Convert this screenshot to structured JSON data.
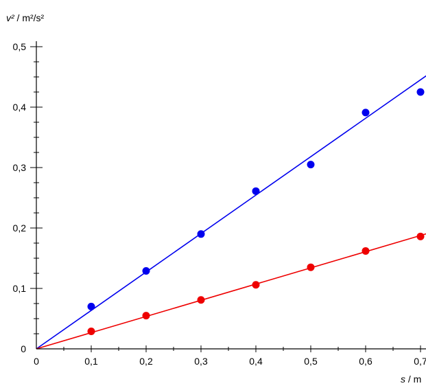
{
  "chart_data": {
    "type": "scatter",
    "title": "",
    "xlabel": {
      "var": "s",
      "unit": " / m"
    },
    "ylabel": {
      "var": "v²",
      "unit": " / m²/s²"
    },
    "xlim": [
      0,
      0.7
    ],
    "ylim": [
      0,
      0.5
    ],
    "x_major_ticks": [
      0,
      0.1,
      0.2,
      0.3,
      0.4,
      0.5,
      0.6,
      0.7
    ],
    "x_tick_labels": [
      "0",
      "0,1",
      "0,2",
      "0,3",
      "0,4",
      "0,5",
      "0,6",
      "0,7"
    ],
    "y_major_ticks": [
      0,
      0.1,
      0.2,
      0.3,
      0.4,
      0.5
    ],
    "y_tick_labels": [
      "0",
      "0,1",
      "0,2",
      "0,3",
      "0,4",
      "0,5"
    ],
    "grid": false,
    "legend": "none",
    "series": [
      {
        "color": "#0000ee",
        "x": [
          0.1,
          0.2,
          0.3,
          0.4,
          0.5,
          0.6,
          0.7
        ],
        "y": [
          0.07,
          0.129,
          0.19,
          0.261,
          0.305,
          0.391,
          0.425
        ],
        "fit": {
          "slope": 0.636,
          "intercept": 0
        }
      },
      {
        "color": "#ee0000",
        "x": [
          0.1,
          0.2,
          0.3,
          0.4,
          0.5,
          0.6,
          0.7
        ],
        "y": [
          0.029,
          0.055,
          0.081,
          0.106,
          0.135,
          0.162,
          0.186
        ],
        "fit": {
          "slope": 0.268,
          "intercept": 0
        }
      }
    ]
  }
}
